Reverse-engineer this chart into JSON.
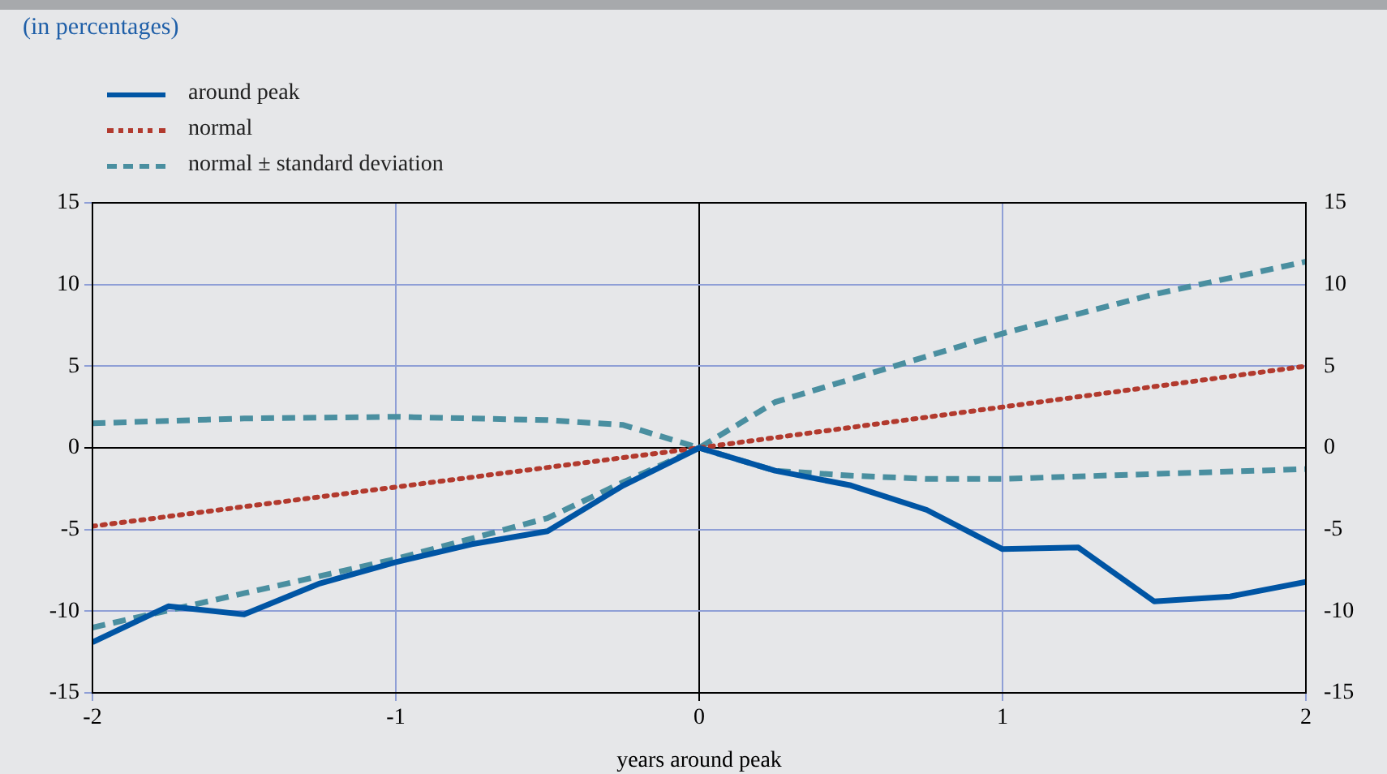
{
  "chart_data": {
    "type": "line",
    "title": "(in percentages)",
    "xlabel": "years around peak",
    "xlim": [
      -2,
      2
    ],
    "xticks": [
      -2,
      -1,
      0,
      1,
      2
    ],
    "ylim": [
      -15,
      15
    ],
    "yticks": [
      -15,
      -10,
      -5,
      0,
      5,
      10,
      15
    ],
    "y2lim": [
      -15,
      15
    ],
    "y2ticks": [
      -15,
      -10,
      -5,
      0,
      5,
      10,
      15
    ],
    "grid": true,
    "legend": "top left",
    "marker": "none",
    "series": [
      {
        "name": "around peak",
        "color": "#0055a4",
        "line_style": "solid",
        "x": [
          -2,
          -1.75,
          -1.5,
          -1.25,
          -1,
          -0.75,
          -0.5,
          -0.25,
          0,
          0.25,
          0.5,
          0.75,
          1,
          1.25,
          1.5,
          1.75,
          2
        ],
        "values": [
          -11.9,
          -9.7,
          -10.2,
          -8.3,
          -7.0,
          -5.9,
          -5.1,
          -2.3,
          0,
          -1.4,
          -2.3,
          -3.8,
          -6.2,
          -6.1,
          -9.4,
          -9.1,
          -8.2
        ]
      },
      {
        "name": "normal",
        "color": "#b23a2e",
        "line_style": "dotted",
        "x": [
          -2,
          0,
          2
        ],
        "values": [
          -4.8,
          0,
          5.0
        ]
      },
      {
        "name": "normal ± standard deviation",
        "color": "#4a8fa0",
        "line_style": "dashed",
        "x": [
          -2,
          -1.5,
          -1,
          -0.5,
          -0.25,
          0,
          0.25,
          0.5,
          1,
          1.5,
          2
        ],
        "values": [
          1.5,
          1.8,
          1.9,
          1.7,
          1.4,
          0,
          2.8,
          4.2,
          7.0,
          9.4,
          11.4
        ]
      },
      {
        "color": "#4a8fa0",
        "line_style": "dashed",
        "x": [
          -2,
          -1.5,
          -1,
          -0.5,
          -0.25,
          0,
          0.25,
          0.5,
          0.75,
          1,
          1.5,
          2
        ],
        "values": [
          -11.0,
          -8.9,
          -6.8,
          -4.3,
          -2.1,
          0,
          -1.4,
          -1.7,
          -1.9,
          -1.9,
          -1.6,
          -1.3
        ]
      }
    ]
  }
}
